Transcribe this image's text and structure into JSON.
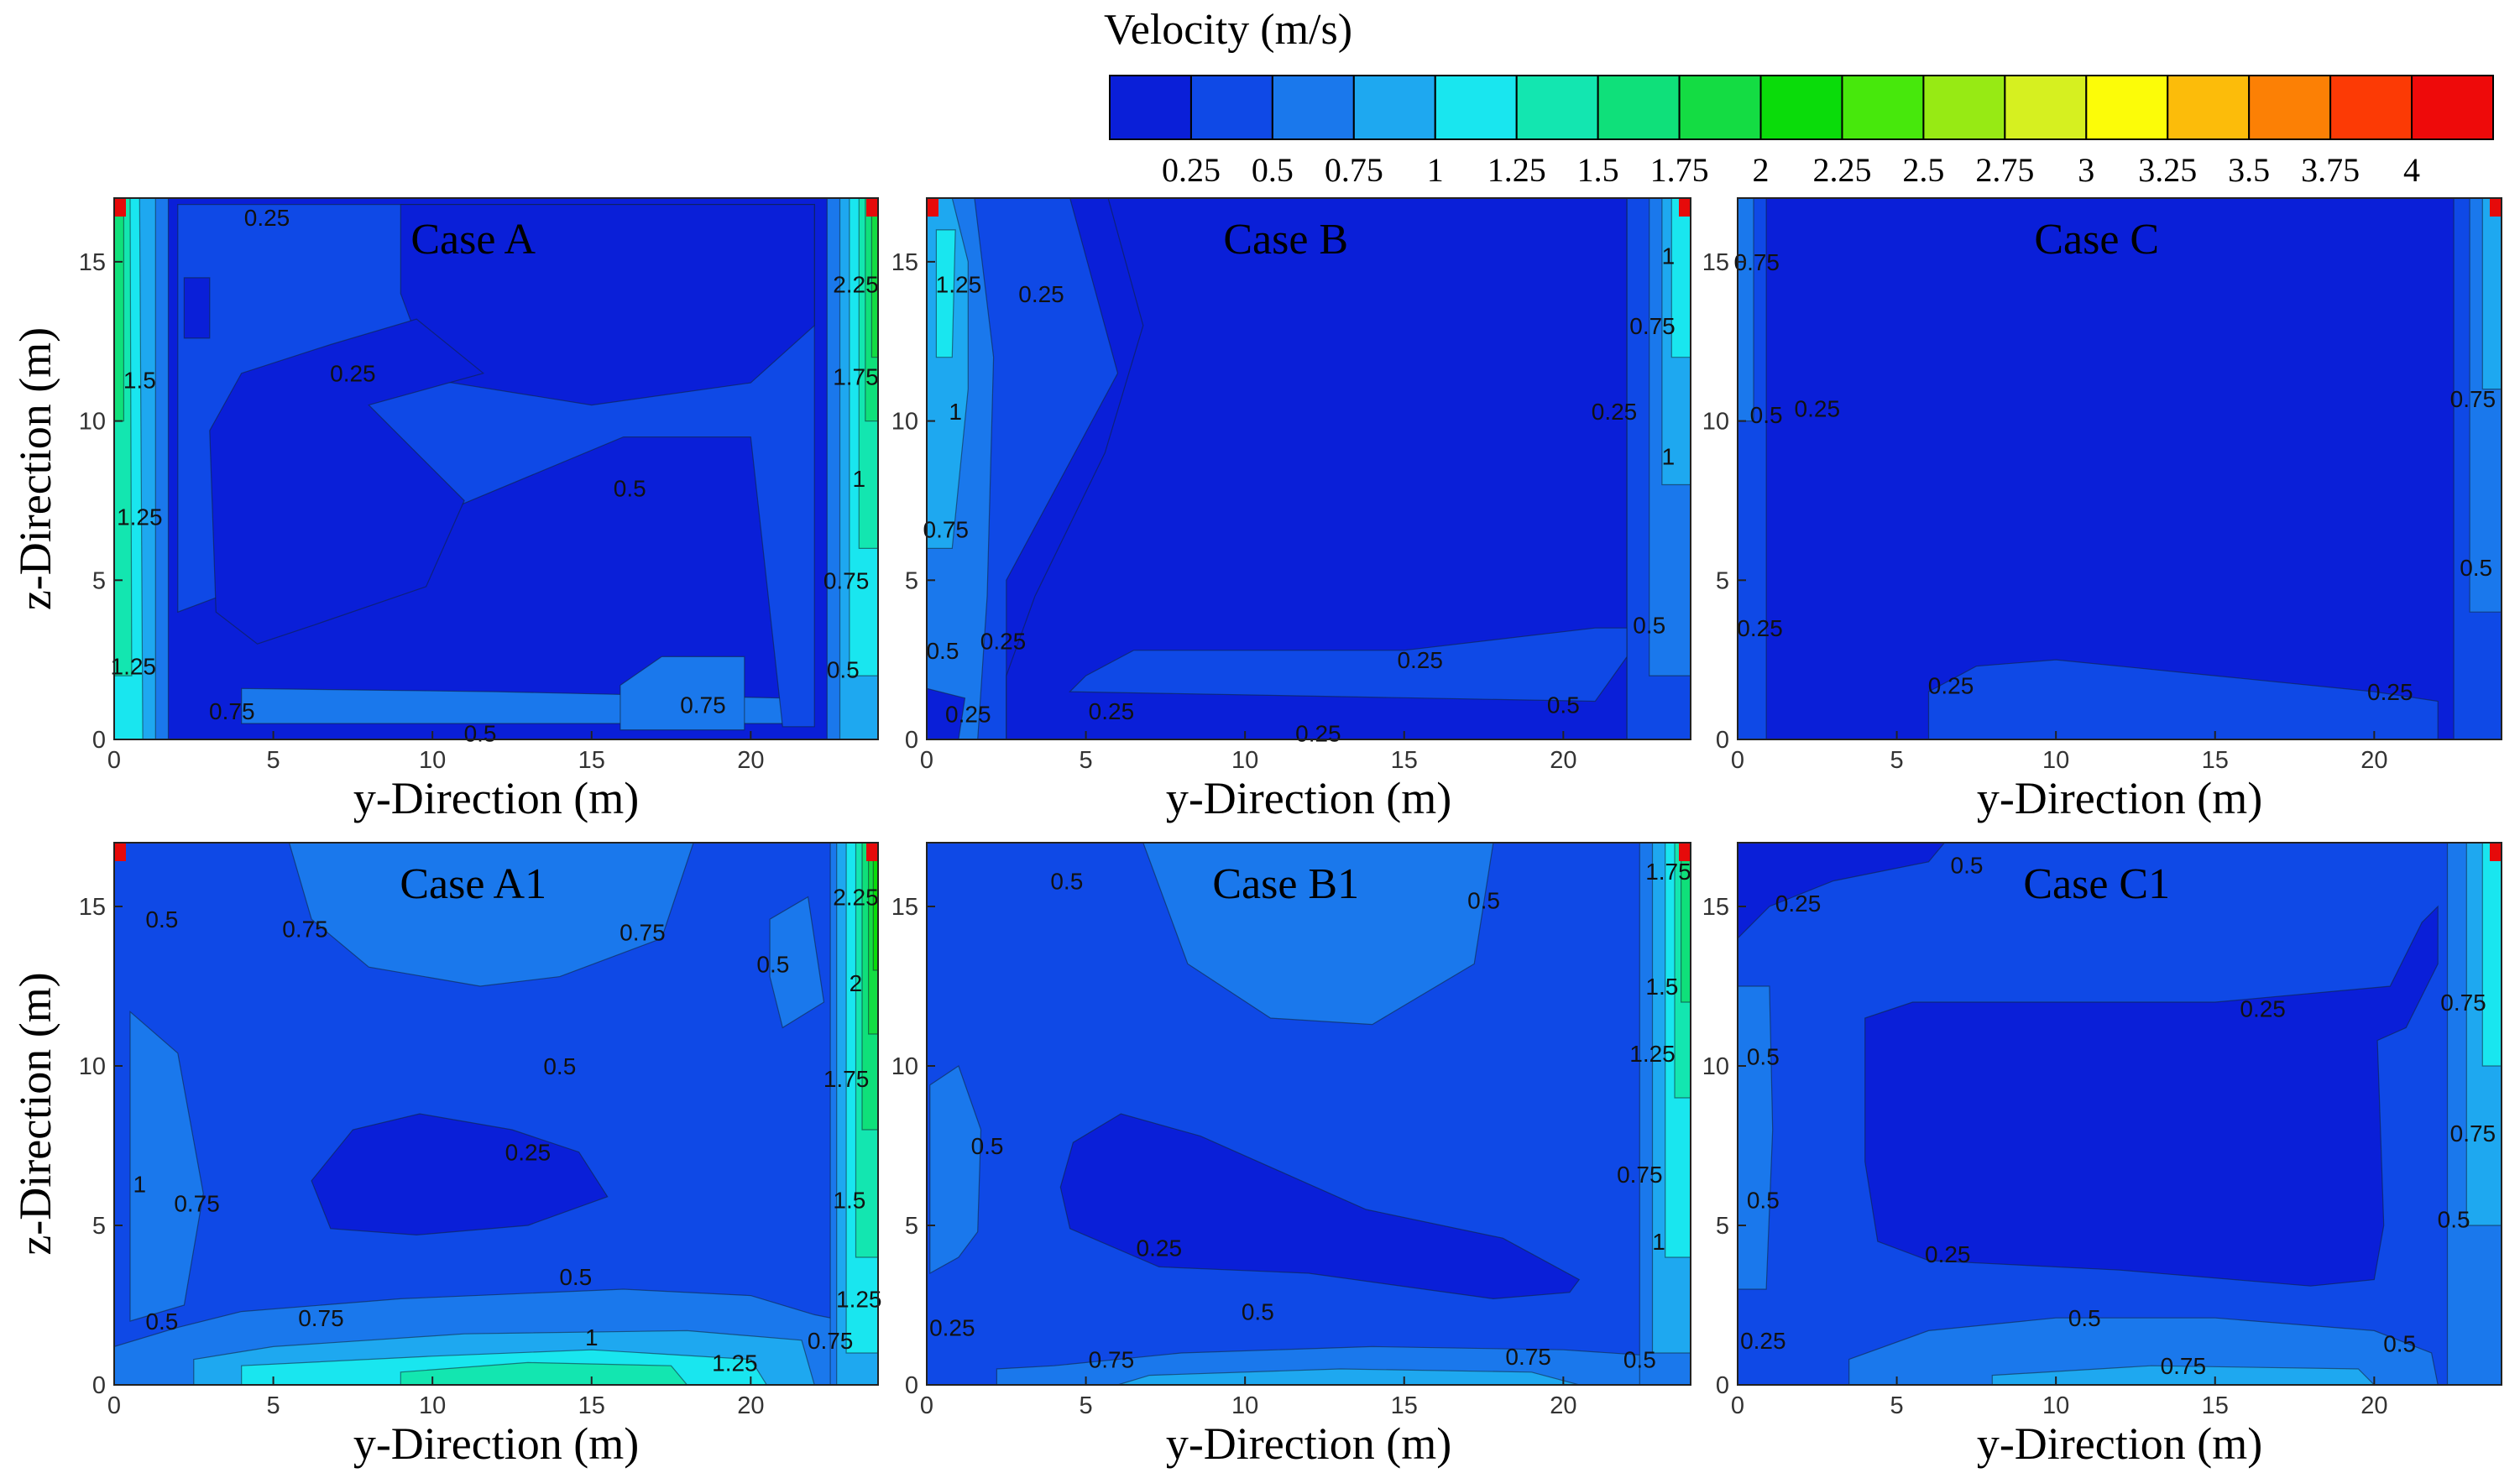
{
  "colorbar": {
    "title": "Velocity (m/s)",
    "ticks": [
      "0.25",
      "0.5",
      "0.75",
      "1",
      "1.25",
      "1.5",
      "1.75",
      "2",
      "2.25",
      "2.5",
      "2.75",
      "3",
      "3.25",
      "3.5",
      "3.75",
      "4"
    ],
    "colors": [
      "#0a1fd8",
      "#0f49e6",
      "#1a78ec",
      "#1ea8f0",
      "#19e6ef",
      "#13e6b0",
      "#0fe07a",
      "#14dc43",
      "#0adc0a",
      "#47e80c",
      "#97ea14",
      "#d6f020",
      "#fcfc08",
      "#fcbc0a",
      "#fc8005",
      "#fc3a05",
      "#ee0a0a"
    ]
  },
  "axes": {
    "xlabel": "y-Direction (m)",
    "ylabel": "z-Direction (m)",
    "xticks": [
      "0",
      "5",
      "10",
      "15",
      "20"
    ],
    "yticks": [
      "0",
      "5",
      "10",
      "15"
    ]
  },
  "chart_data": [
    {
      "type": "heatmap",
      "title": "Case A",
      "xlim": [
        0,
        24
      ],
      "ylim": [
        0,
        17
      ],
      "contour_labels": [
        {
          "text": "0.25",
          "x": 4.8,
          "y": 16.4
        },
        {
          "text": "0.25",
          "x": 7.5,
          "y": 11.5
        },
        {
          "text": "0.5",
          "x": 16.2,
          "y": 7.9
        },
        {
          "text": "0.75",
          "x": 18.5,
          "y": 1.1
        },
        {
          "text": "0.75",
          "x": 3.7,
          "y": 0.9
        },
        {
          "text": "0.5",
          "x": 11.5,
          "y": 0.2
        },
        {
          "text": "1.5",
          "x": 0.8,
          "y": 11.3
        },
        {
          "text": "1.25",
          "x": 0.8,
          "y": 7.0
        },
        {
          "text": "1.25",
          "x": 0.6,
          "y": 2.3
        },
        {
          "text": "2.25",
          "x": 23.3,
          "y": 14.3
        },
        {
          "text": "1.75",
          "x": 23.3,
          "y": 11.4
        },
        {
          "text": "1",
          "x": 23.4,
          "y": 8.2
        },
        {
          "text": "0.75",
          "x": 23.0,
          "y": 5.0
        },
        {
          "text": "0.5",
          "x": 22.9,
          "y": 2.2
        }
      ]
    },
    {
      "type": "heatmap",
      "title": "Case B",
      "xlim": [
        0,
        24
      ],
      "ylim": [
        0,
        17
      ],
      "contour_labels": [
        {
          "text": "0.25",
          "x": 3.6,
          "y": 14.0
        },
        {
          "text": "1.25",
          "x": 1.0,
          "y": 14.3
        },
        {
          "text": "1",
          "x": 0.9,
          "y": 10.3
        },
        {
          "text": "0.75",
          "x": 0.6,
          "y": 6.6
        },
        {
          "text": "0.25",
          "x": 2.4,
          "y": 3.1
        },
        {
          "text": "0.5",
          "x": 0.5,
          "y": 2.8
        },
        {
          "text": "0.25",
          "x": 1.3,
          "y": 0.8
        },
        {
          "text": "0.25",
          "x": 5.8,
          "y": 0.9
        },
        {
          "text": "0.25",
          "x": 12.3,
          "y": 0.2
        },
        {
          "text": "0.25",
          "x": 15.5,
          "y": 2.5
        },
        {
          "text": "0.5",
          "x": 20.0,
          "y": 1.1
        },
        {
          "text": "1",
          "x": 23.3,
          "y": 15.2
        },
        {
          "text": "0.75",
          "x": 22.8,
          "y": 13.0
        },
        {
          "text": "0.25",
          "x": 21.6,
          "y": 10.3
        },
        {
          "text": "1",
          "x": 23.3,
          "y": 8.9
        },
        {
          "text": "0.5",
          "x": 22.7,
          "y": 3.6
        }
      ]
    },
    {
      "type": "heatmap",
      "title": "Case C",
      "xlim": [
        0,
        24
      ],
      "ylim": [
        0,
        17
      ],
      "contour_labels": [
        {
          "text": "0.75",
          "x": 0.6,
          "y": 15.0
        },
        {
          "text": "0.5",
          "x": 0.9,
          "y": 10.2
        },
        {
          "text": "0.25",
          "x": 2.5,
          "y": 10.4
        },
        {
          "text": "0.25",
          "x": 0.7,
          "y": 3.5
        },
        {
          "text": "0.25",
          "x": 6.7,
          "y": 1.7
        },
        {
          "text": "0.25",
          "x": 20.5,
          "y": 1.5
        },
        {
          "text": "0.75",
          "x": 23.1,
          "y": 10.7
        },
        {
          "text": "0.5",
          "x": 23.2,
          "y": 5.4
        }
      ]
    },
    {
      "type": "heatmap",
      "title": "Case A1",
      "xlim": [
        0,
        24
      ],
      "ylim": [
        0,
        17
      ],
      "contour_labels": [
        {
          "text": "0.5",
          "x": 1.5,
          "y": 14.6
        },
        {
          "text": "0.75",
          "x": 6.0,
          "y": 14.3
        },
        {
          "text": "0.75",
          "x": 16.6,
          "y": 14.2
        },
        {
          "text": "0.5",
          "x": 20.7,
          "y": 13.2
        },
        {
          "text": "0.5",
          "x": 14.0,
          "y": 10.0
        },
        {
          "text": "0.25",
          "x": 13.0,
          "y": 7.3
        },
        {
          "text": "0.75",
          "x": 2.6,
          "y": 5.7
        },
        {
          "text": "1",
          "x": 0.8,
          "y": 6.3
        },
        {
          "text": "0.5",
          "x": 14.5,
          "y": 3.4
        },
        {
          "text": "0.75",
          "x": 6.5,
          "y": 2.1
        },
        {
          "text": "1",
          "x": 15.0,
          "y": 1.5
        },
        {
          "text": "1.25",
          "x": 19.5,
          "y": 0.7
        },
        {
          "text": "0.5",
          "x": 1.5,
          "y": 2.0
        },
        {
          "text": "0.75",
          "x": 22.5,
          "y": 1.4
        },
        {
          "text": "2.25",
          "x": 23.3,
          "y": 15.3
        },
        {
          "text": "2",
          "x": 23.3,
          "y": 12.6
        },
        {
          "text": "1.75",
          "x": 23.0,
          "y": 9.6
        },
        {
          "text": "1.5",
          "x": 23.1,
          "y": 5.8
        },
        {
          "text": "1.25",
          "x": 23.4,
          "y": 2.7
        }
      ]
    },
    {
      "type": "heatmap",
      "title": "Case B1",
      "xlim": [
        0,
        24
      ],
      "ylim": [
        0,
        17
      ],
      "contour_labels": [
        {
          "text": "0.5",
          "x": 4.4,
          "y": 15.8
        },
        {
          "text": "0.5",
          "x": 17.5,
          "y": 15.2
        },
        {
          "text": "0.5",
          "x": 1.9,
          "y": 7.5
        },
        {
          "text": "0.25",
          "x": 7.3,
          "y": 4.3
        },
        {
          "text": "0.5",
          "x": 10.4,
          "y": 2.3
        },
        {
          "text": "0.75",
          "x": 5.8,
          "y": 0.8
        },
        {
          "text": "0.75",
          "x": 18.9,
          "y": 0.9
        },
        {
          "text": "0.5",
          "x": 22.4,
          "y": 0.8
        },
        {
          "text": "0.25",
          "x": 0.8,
          "y": 1.8
        },
        {
          "text": "1.75",
          "x": 23.3,
          "y": 16.1
        },
        {
          "text": "1.5",
          "x": 23.1,
          "y": 12.5
        },
        {
          "text": "1.25",
          "x": 22.8,
          "y": 10.4
        },
        {
          "text": "0.75",
          "x": 22.4,
          "y": 6.6
        },
        {
          "text": "1",
          "x": 23.0,
          "y": 4.5
        }
      ]
    },
    {
      "type": "heatmap",
      "title": "Case C1",
      "xlim": [
        0,
        24
      ],
      "ylim": [
        0,
        17
      ],
      "contour_labels": [
        {
          "text": "0.5",
          "x": 7.2,
          "y": 16.3
        },
        {
          "text": "0.25",
          "x": 1.9,
          "y": 15.1
        },
        {
          "text": "0.25",
          "x": 16.5,
          "y": 11.8
        },
        {
          "text": "0.5",
          "x": 0.8,
          "y": 10.3
        },
        {
          "text": "0.25",
          "x": 6.6,
          "y": 4.1
        },
        {
          "text": "0.5",
          "x": 0.8,
          "y": 5.8
        },
        {
          "text": "0.5",
          "x": 10.9,
          "y": 2.1
        },
        {
          "text": "0.5",
          "x": 20.8,
          "y": 1.3
        },
        {
          "text": "0.75",
          "x": 14.0,
          "y": 0.6
        },
        {
          "text": "0.25",
          "x": 0.8,
          "y": 1.4
        },
        {
          "text": "0.75",
          "x": 22.8,
          "y": 12.0
        },
        {
          "text": "0.75",
          "x": 23.1,
          "y": 7.9
        },
        {
          "text": "0.5",
          "x": 22.5,
          "y": 5.2
        }
      ]
    }
  ]
}
